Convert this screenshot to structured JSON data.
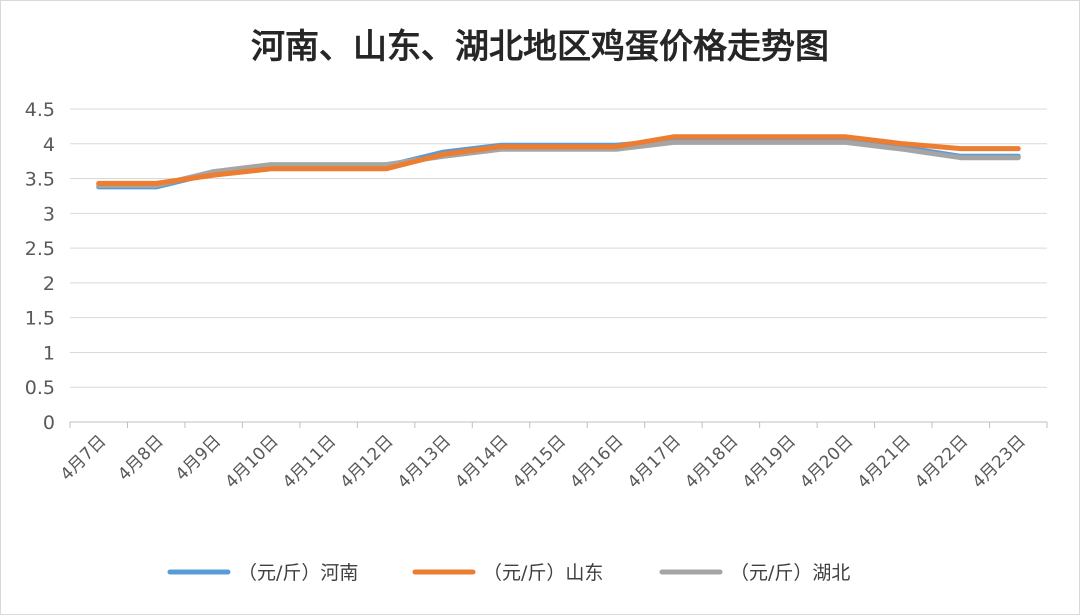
{
  "chart_data": {
    "type": "line",
    "title": "河南、山东、湖北地区鸡蛋价格走势图",
    "xlabel": "",
    "ylabel": "",
    "categories": [
      "4月7日",
      "4月8日",
      "4月9日",
      "4月10日",
      "4月11日",
      "4月12日",
      "4月13日",
      "4月14日",
      "4月15日",
      "4月16日",
      "4月17日",
      "4月18日",
      "4月19日",
      "4月20日",
      "4月21日",
      "4月22日",
      "4月23日"
    ],
    "ylim": [
      0,
      4.5
    ],
    "yticks": [
      "0",
      "0.5",
      "1",
      "1.5",
      "2",
      "2.5",
      "3",
      "3.5",
      "4",
      "4.5"
    ],
    "grid": true,
    "legend_position": "bottom",
    "series": [
      {
        "name": "（元/斤）河南",
        "color": "#5b9bd5",
        "values": [
          3.38,
          3.38,
          3.58,
          3.68,
          3.68,
          3.68,
          3.88,
          3.98,
          3.98,
          3.98,
          4.05,
          4.05,
          4.05,
          4.05,
          3.95,
          3.82,
          3.82
        ]
      },
      {
        "name": "（元/斤）山东",
        "color": "#ed7d31",
        "values": [
          3.43,
          3.43,
          3.55,
          3.64,
          3.64,
          3.64,
          3.85,
          3.96,
          3.96,
          3.96,
          4.1,
          4.1,
          4.1,
          4.1,
          4.0,
          3.93,
          3.93
        ]
      },
      {
        "name": "（元/斤）湖北",
        "color": "#a5a5a5",
        "values": [
          3.4,
          3.4,
          3.6,
          3.7,
          3.7,
          3.7,
          3.82,
          3.92,
          3.92,
          3.92,
          4.02,
          4.02,
          4.02,
          4.02,
          3.92,
          3.8,
          3.8
        ]
      }
    ]
  }
}
